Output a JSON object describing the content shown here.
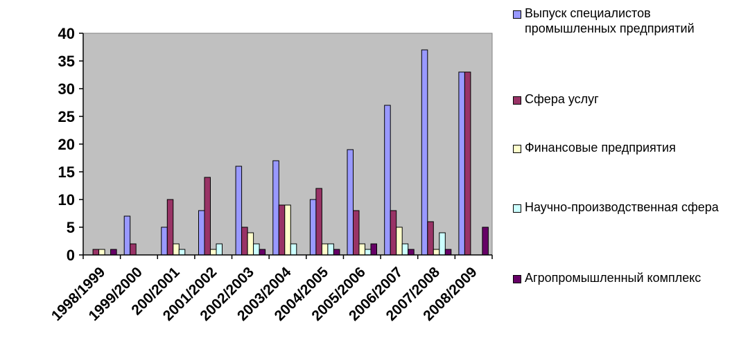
{
  "chart_data": {
    "type": "bar",
    "categories": [
      "1998/1999",
      "1999/2000",
      "200/2001",
      "2001/2002",
      "2002/2003",
      "2003/2004",
      "2004/2005",
      "2005/2006",
      "2006/2007",
      "2007/2008",
      "2008/2009"
    ],
    "series": [
      {
        "name": "Выпуск специалистов промышленных предприятий",
        "color": "#9999ff",
        "values": [
          0,
          7,
          5,
          8,
          16,
          17,
          10,
          19,
          27,
          37,
          33
        ]
      },
      {
        "name": "Сфера услуг",
        "color": "#993366",
        "values": [
          1,
          2,
          10,
          14,
          5,
          9,
          12,
          8,
          8,
          6,
          33
        ]
      },
      {
        "name": "Финансовые предприятия",
        "color": "#ffffcc",
        "values": [
          1,
          0,
          2,
          1,
          4,
          9,
          2,
          2,
          5,
          1,
          0
        ]
      },
      {
        "name": "Научно-производственная сфера",
        "color": "#ccffff",
        "values": [
          0,
          0,
          1,
          2,
          2,
          2,
          2,
          1,
          2,
          4,
          0
        ]
      },
      {
        "name": "Агропромышленный комплекс",
        "color": "#660066",
        "values": [
          1,
          0,
          0,
          0,
          1,
          0,
          1,
          2,
          1,
          1,
          5
        ]
      }
    ],
    "y_ticks": [
      "0",
      "5",
      "10",
      "15",
      "20",
      "25",
      "30",
      "35",
      "40"
    ],
    "ylim": [
      0,
      40
    ],
    "plot_background": "#c0c0c0",
    "grid": false,
    "legend_position": "right"
  }
}
